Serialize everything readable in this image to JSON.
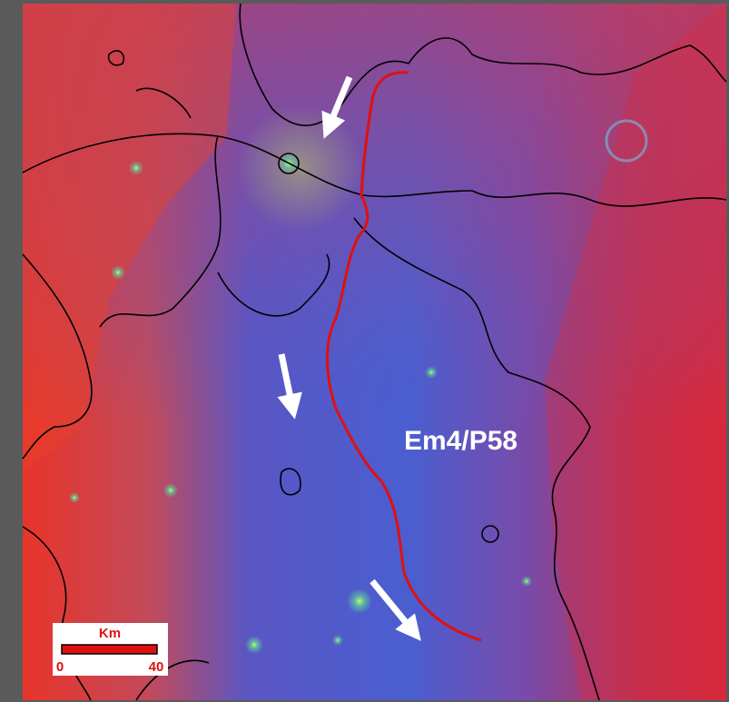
{
  "map_label": "Em4/P58",
  "scale_bar": {
    "unit": "Km",
    "min": 0,
    "max": 40
  }
}
